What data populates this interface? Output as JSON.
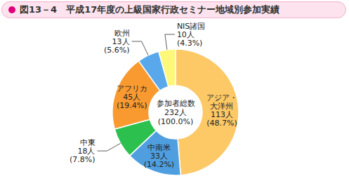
{
  "chart_data": {
    "type": "pie",
    "title": "図13－4　平成17年度の上級国家行政セミナー地域別参加実績",
    "categories": [
      "アジア・大洋州",
      "中南米",
      "中東",
      "アフリカ",
      "欧州",
      "NIS諸国"
    ],
    "values": [
      113,
      33,
      18,
      45,
      13,
      10
    ],
    "value_labels": [
      "113人",
      "33人",
      "18人",
      "45人",
      "13人",
      "10人"
    ],
    "shares": [
      48.7,
      14.2,
      7.8,
      19.4,
      5.6,
      4.3
    ],
    "share_labels": [
      "(48.7%)",
      "(14.2%)",
      "(7.8%)",
      "(19.4%)",
      "(5.6%)",
      "(4.3%)"
    ],
    "colors": [
      "#fdc866",
      "#4f9fe0",
      "#2cc04e",
      "#f99a30",
      "#5aa8ec",
      "#fdf77a"
    ],
    "center": {
      "label": "参加者総数",
      "total": 232,
      "total_label": "232人",
      "share": 100.0,
      "share_label": "(100.0%)"
    },
    "data_labels": true
  }
}
